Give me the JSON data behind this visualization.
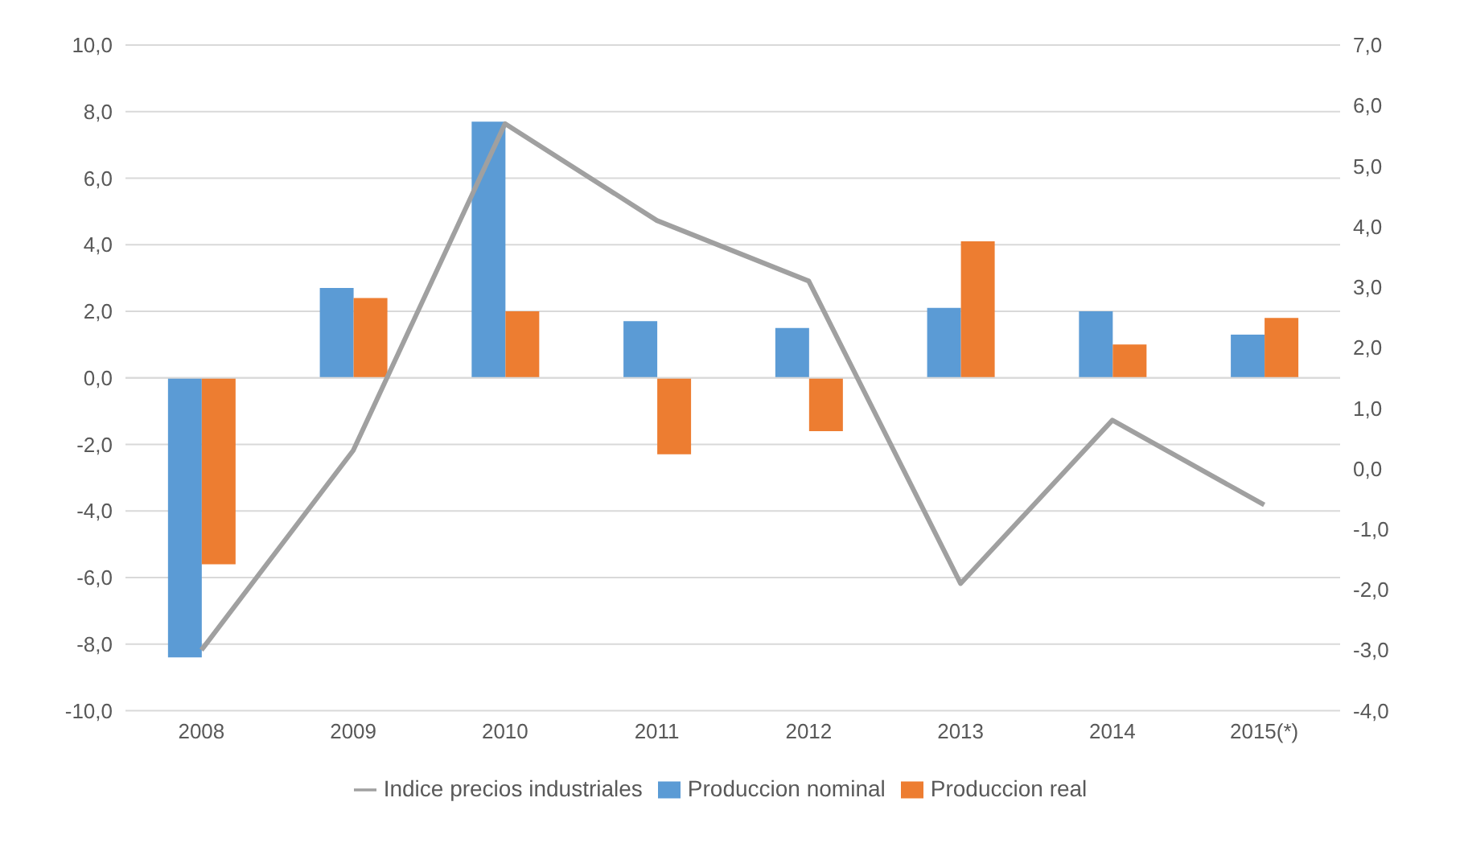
{
  "chart_data": {
    "type": "bar",
    "categories": [
      "2008",
      "2009",
      "2010",
      "2011",
      "2012",
      "2013",
      "2014",
      "2015(*)"
    ],
    "series": [
      {
        "name": "Produccion nominal",
        "color": "#5b9bd5",
        "values": [
          -8.4,
          2.7,
          7.7,
          1.7,
          1.5,
          2.1,
          2.0,
          1.3
        ]
      },
      {
        "name": "Produccion real",
        "color": "#ed7d31",
        "values": [
          -5.6,
          2.4,
          2.0,
          -2.3,
          -1.6,
          4.1,
          1.0,
          1.8
        ]
      },
      {
        "name": "Indice precios industriales",
        "color": "#a0a0a0",
        "type": "line",
        "axis": "y2",
        "values": [
          -3.0,
          0.3,
          5.7,
          4.1,
          3.1,
          -1.9,
          0.8,
          -0.6
        ]
      }
    ],
    "ylim": [
      -10,
      10
    ],
    "yticks": [
      {
        "value": -10,
        "label": "-10,0"
      },
      {
        "value": -8,
        "label": "-8,0"
      },
      {
        "value": -6,
        "label": "-6,0"
      },
      {
        "value": -4,
        "label": "-4,0"
      },
      {
        "value": -2,
        "label": "-2,0"
      },
      {
        "value": 0,
        "label": "0,0"
      },
      {
        "value": 2,
        "label": "2,0"
      },
      {
        "value": 4,
        "label": "4,0"
      },
      {
        "value": 6,
        "label": "6,0"
      },
      {
        "value": 8,
        "label": "8,0"
      },
      {
        "value": 10,
        "label": "10,0"
      }
    ],
    "y2lim": [
      -4,
      7
    ],
    "y2ticks": [
      {
        "value": -4,
        "label": "-4,0"
      },
      {
        "value": -3,
        "label": "-3,0"
      },
      {
        "value": -2,
        "label": "-2,0"
      },
      {
        "value": -1,
        "label": "-1,0"
      },
      {
        "value": 0,
        "label": "0,0"
      },
      {
        "value": 1,
        "label": "1,0"
      },
      {
        "value": 2,
        "label": "2,0"
      },
      {
        "value": 3,
        "label": "3,0"
      },
      {
        "value": 4,
        "label": "4,0"
      },
      {
        "value": 5,
        "label": "5,0"
      },
      {
        "value": 6,
        "label": "6,0"
      },
      {
        "value": 7,
        "label": "7,0"
      }
    ],
    "grid": "y",
    "legend": "bottom",
    "marker": "none",
    "line_style": "solid"
  }
}
